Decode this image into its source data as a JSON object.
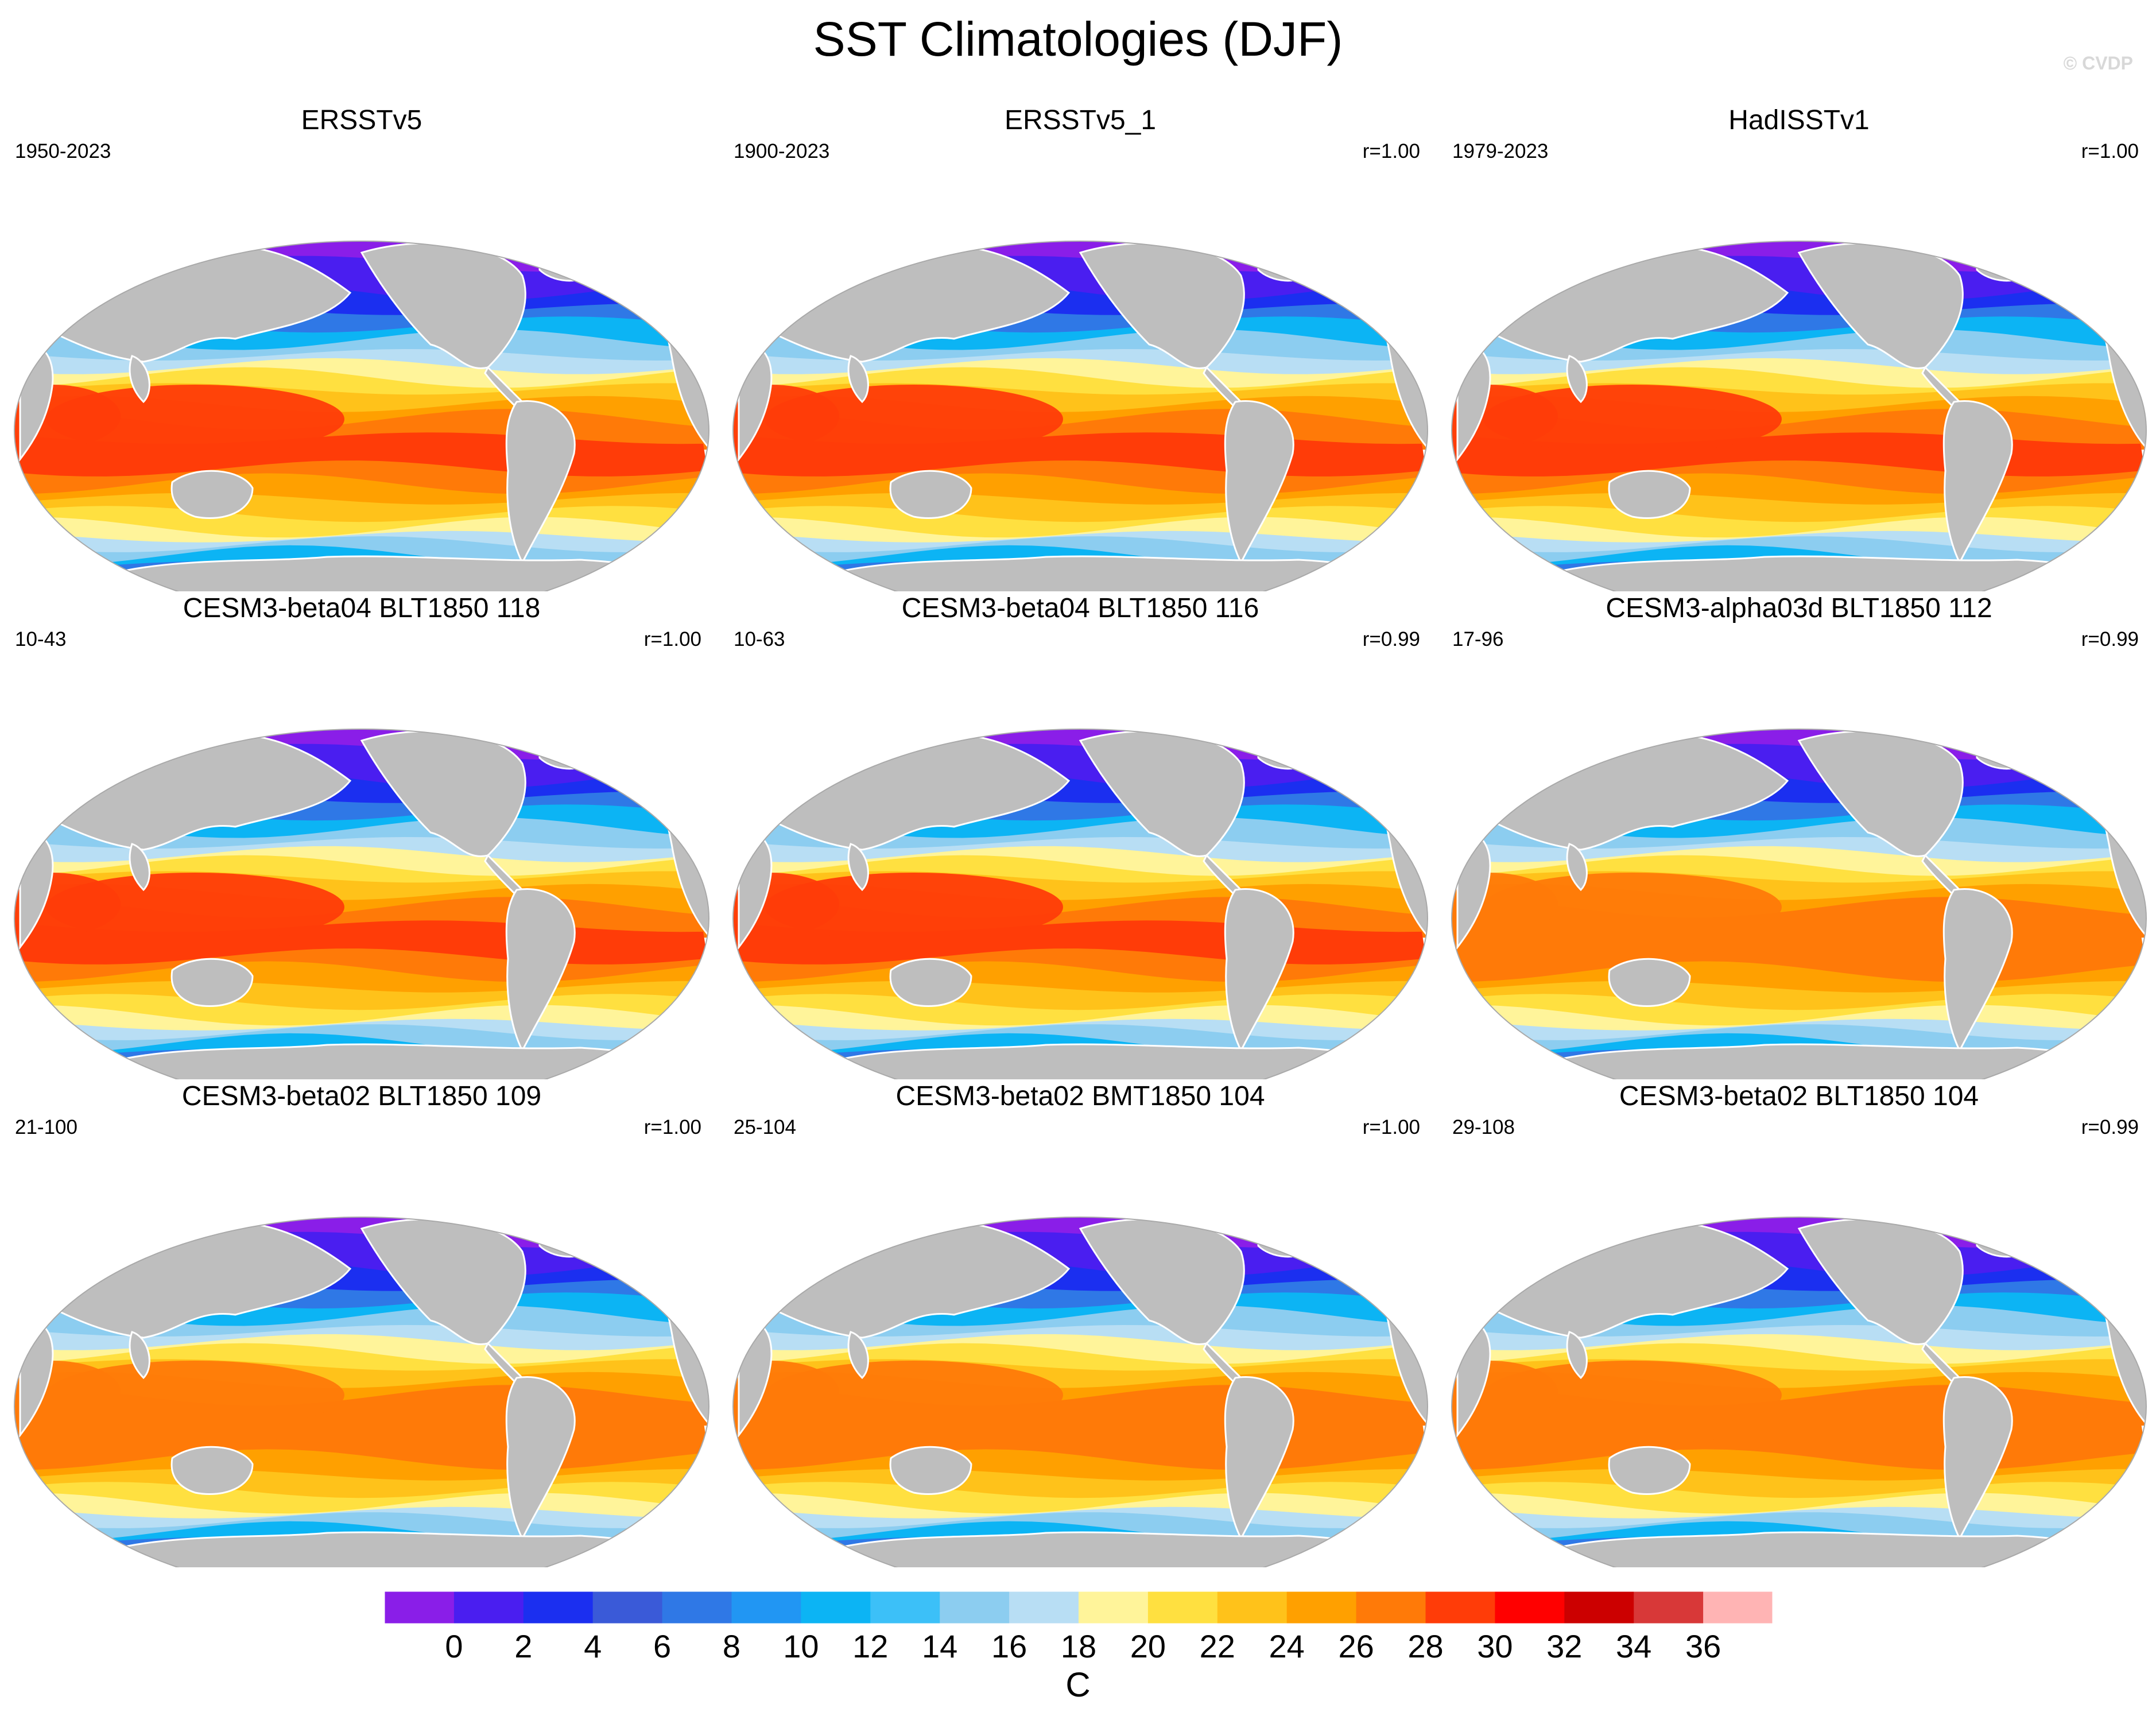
{
  "figure": {
    "title": "SST Climatologies (DJF)",
    "watermark": "© CVDP"
  },
  "panels": [
    {
      "title": "ERSSTv5",
      "period": "1950-2023",
      "r": "",
      "variant": 0
    },
    {
      "title": "ERSSTv5_1",
      "period": "1900-2023",
      "r": "r=1.00",
      "variant": 0
    },
    {
      "title": "HadISSTv1",
      "period": "1979-2023",
      "r": "r=1.00",
      "variant": 1
    },
    {
      "title": "CESM3-beta04 BLT1850 118",
      "period": "10-43",
      "r": "r=1.00",
      "variant": 2
    },
    {
      "title": "CESM3-beta04 BLT1850 116",
      "period": "10-63",
      "r": "r=0.99",
      "variant": 2
    },
    {
      "title": "CESM3-alpha03d BLT1850 112",
      "period": "17-96",
      "r": "r=0.99",
      "variant": 3
    },
    {
      "title": "CESM3-beta02 BLT1850 109",
      "period": "21-100",
      "r": "r=1.00",
      "variant": 3
    },
    {
      "title": "CESM3-beta02 BMT1850 104",
      "period": "25-104",
      "r": "r=1.00",
      "variant": 3
    },
    {
      "title": "CESM3-beta02 BLT1850 104",
      "period": "29-108",
      "r": "r=0.99",
      "variant": 3
    }
  ],
  "colorbar": {
    "unit": "C",
    "tick_labels": [
      "0",
      "2",
      "4",
      "6",
      "8",
      "10",
      "12",
      "14",
      "16",
      "18",
      "20",
      "22",
      "24",
      "26",
      "28",
      "30",
      "32",
      "34",
      "36"
    ],
    "colors": [
      "#8a1ee8",
      "#4a1ef0",
      "#1b2ff0",
      "#3a5ad8",
      "#2f78e6",
      "#2196f3",
      "#0cb4f4",
      "#3cc0f8",
      "#8ccdf0",
      "#b8def4",
      "#fff49a",
      "#ffe040",
      "#ffc21a",
      "#ffa000",
      "#ff7a08",
      "#ff3c08",
      "#ff0000",
      "#cc0000",
      "#d83838",
      "#ffb4b4"
    ],
    "land_color": "#bebebe"
  }
}
